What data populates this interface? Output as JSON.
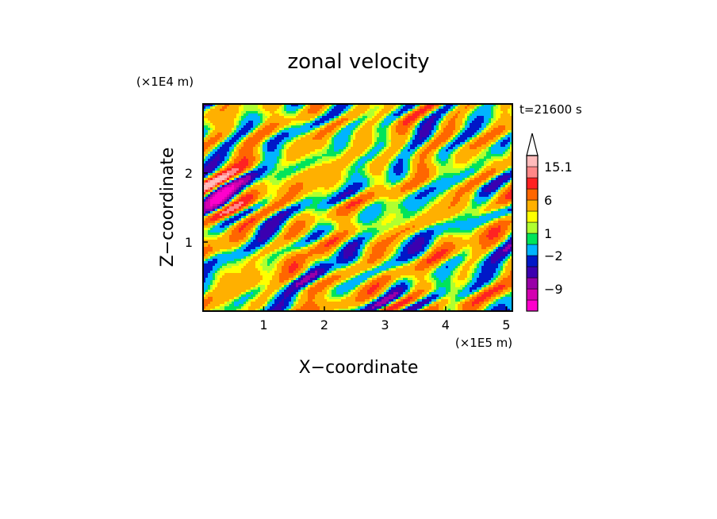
{
  "chart_data": {
    "type": "heatmap",
    "title": "zonal velocity",
    "xlabel": "X−coordinate",
    "ylabel": "Z−coordinate",
    "x_unit": "(×1E5 m)",
    "y_unit": "(×1E4 m)",
    "time_label": "t=21600 s",
    "xlim": [
      0,
      5.1
    ],
    "ylim": [
      0,
      3.0
    ],
    "x_ticks": [
      "1",
      "2",
      "3",
      "4",
      "5"
    ],
    "y_ticks": [
      "1",
      "2"
    ],
    "colorbar": {
      "levels": [
        -15.1,
        -12,
        -9,
        -6,
        -4,
        -2,
        0,
        1,
        2,
        3,
        6,
        9,
        12,
        15.1
      ],
      "colors": [
        "#ff00cc",
        "#d400b0",
        "#9900a8",
        "#3b00b0",
        "#0018c8",
        "#00b4ff",
        "#00e45a",
        "#b0ff30",
        "#ffff00",
        "#ffb000",
        "#ff6600",
        "#ff2222",
        "#ff8888",
        "#ffbbbb"
      ],
      "tick_labels": [
        "15.1",
        "6",
        "1",
        "−2",
        "−9"
      ],
      "tick_values": [
        15.1,
        6,
        1,
        -2,
        -9
      ]
    }
  }
}
